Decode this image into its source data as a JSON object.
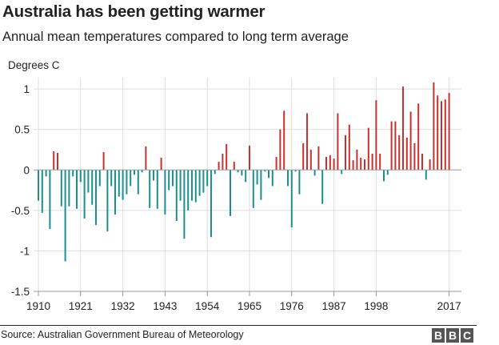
{
  "header": {
    "title": "Australia has been getting warmer",
    "subtitle": "Annual mean temperatures compared to long term average"
  },
  "footer": {
    "source": "Source: Australian Government Bureau of Meteorology",
    "logo_letters": [
      "B",
      "B",
      "C"
    ]
  },
  "colors": {
    "positive": "#c8302e",
    "negative": "#1a8f8f",
    "grid": "#dddddd",
    "axis": "#999999"
  },
  "chart_data": {
    "type": "bar",
    "title": "Australia has been getting warmer",
    "subtitle": "Annual mean temperatures compared to long term average",
    "ylabel": "Degrees C",
    "xlabel": "",
    "ylim": [
      -1.5,
      1.1
    ],
    "yticks": [
      -1.5,
      -1,
      -0.5,
      0,
      0.5,
      1
    ],
    "ytick_labels": [
      "-1.5",
      "-1",
      "-0.5",
      "0",
      "0.5",
      "1"
    ],
    "xticks": [
      1910,
      1921,
      1932,
      1943,
      1954,
      1965,
      1976,
      1987,
      1998,
      2017
    ],
    "grid": true,
    "categories": [
      1910,
      1911,
      1912,
      1913,
      1914,
      1915,
      1916,
      1917,
      1918,
      1919,
      1920,
      1921,
      1922,
      1923,
      1924,
      1925,
      1926,
      1927,
      1928,
      1929,
      1930,
      1931,
      1932,
      1933,
      1934,
      1935,
      1936,
      1937,
      1938,
      1939,
      1940,
      1941,
      1942,
      1943,
      1944,
      1945,
      1946,
      1947,
      1948,
      1949,
      1950,
      1951,
      1952,
      1953,
      1954,
      1955,
      1956,
      1957,
      1958,
      1959,
      1960,
      1961,
      1962,
      1963,
      1964,
      1965,
      1966,
      1967,
      1968,
      1969,
      1970,
      1971,
      1972,
      1973,
      1974,
      1975,
      1976,
      1977,
      1978,
      1979,
      1980,
      1981,
      1982,
      1983,
      1984,
      1985,
      1986,
      1987,
      1988,
      1989,
      1990,
      1991,
      1992,
      1993,
      1994,
      1995,
      1996,
      1997,
      1998,
      1999,
      2000,
      2001,
      2002,
      2003,
      2004,
      2005,
      2006,
      2007,
      2008,
      2009,
      2010,
      2011,
      2012,
      2013,
      2014,
      2015,
      2016,
      2017
    ],
    "values": [
      -0.38,
      -0.53,
      -0.08,
      -0.73,
      0.23,
      0.21,
      -0.45,
      -1.13,
      -0.45,
      -0.08,
      -0.48,
      -0.15,
      -0.6,
      -0.28,
      -0.43,
      -0.68,
      -0.2,
      0.22,
      -0.76,
      -0.2,
      -0.55,
      -0.33,
      -0.37,
      -0.3,
      -0.2,
      -0.06,
      -0.3,
      -0.03,
      0.29,
      -0.47,
      -0.13,
      -0.48,
      0.15,
      -0.55,
      -0.25,
      -0.2,
      -0.63,
      -0.38,
      -0.85,
      -0.5,
      -0.38,
      -0.4,
      -0.32,
      -0.28,
      -0.2,
      -0.83,
      -0.05,
      0.1,
      0.2,
      0.32,
      -0.57,
      0.1,
      -0.03,
      -0.07,
      -0.15,
      0.3,
      -0.47,
      -0.18,
      -0.37,
      -0.02,
      -0.1,
      -0.2,
      0.16,
      0.5,
      0.73,
      -0.2,
      -0.71,
      -0.02,
      -0.3,
      0.33,
      0.7,
      0.25,
      -0.07,
      0.29,
      -0.42,
      0.16,
      0.18,
      0.14,
      0.7,
      -0.05,
      0.43,
      0.56,
      0.12,
      0.25,
      0.15,
      0.13,
      0.52,
      0.2,
      0.86,
      0.2,
      -0.14,
      -0.06,
      0.6,
      0.6,
      0.43,
      1.03,
      0.4,
      0.72,
      0.33,
      0.82,
      0.2,
      -0.12,
      0.13,
      1.08,
      0.92,
      0.85,
      0.87,
      0.95
    ]
  }
}
